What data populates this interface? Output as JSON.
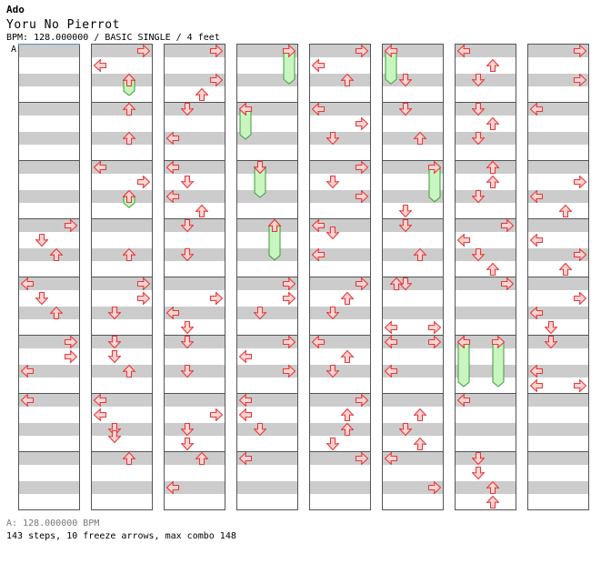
{
  "header": {
    "artist": "Ado",
    "title": "Yoru No Pierrot",
    "meta": "BPM: 128.000000 / BASIC SINGLE / 4 feet"
  },
  "bpm_marker": "A",
  "footer": {
    "bpm_line": "A: 128.000000 BPM",
    "summary": "143 steps, 10 freeze arrows, max combo 148"
  },
  "colors": {
    "band": "#cccccc",
    "arrow_fill": "#ffd4d4",
    "arrow_stroke": "#e23a3a",
    "freeze_fill": "#c8f5c0",
    "freeze_stroke": "#3e9a3e",
    "marker_line": "#8fc8ee"
  },
  "lanes": [
    "left",
    "down",
    "up",
    "right"
  ],
  "columns": [
    {
      "notes": [
        {
          "m": 3,
          "r": 0.5,
          "d": "right"
        },
        {
          "m": 3,
          "r": 1.5,
          "d": "down"
        },
        {
          "m": 3,
          "r": 2.5,
          "d": "up"
        },
        {
          "m": 4,
          "r": 0.5,
          "d": "left"
        },
        {
          "m": 4,
          "r": 1.5,
          "d": "down"
        },
        {
          "m": 4,
          "r": 2.5,
          "d": "up"
        },
        {
          "m": 5,
          "r": 0.5,
          "d": "right"
        },
        {
          "m": 5,
          "r": 1.5,
          "d": "right"
        },
        {
          "m": 5,
          "r": 2.5,
          "d": "left"
        },
        {
          "m": 6,
          "r": 0.5,
          "d": "left"
        }
      ],
      "freezes": []
    },
    {
      "notes": [
        {
          "m": 0,
          "r": 0.5,
          "d": "right"
        },
        {
          "m": 0,
          "r": 1.5,
          "d": "left"
        },
        {
          "m": 0,
          "r": 2.5,
          "d": "up"
        },
        {
          "m": 1,
          "r": 0.5,
          "d": "up"
        },
        {
          "m": 1,
          "r": 2.5,
          "d": "up"
        },
        {
          "m": 2,
          "r": 0.5,
          "d": "left"
        },
        {
          "m": 2,
          "r": 1.5,
          "d": "right"
        },
        {
          "m": 2,
          "r": 2.5,
          "d": "up"
        },
        {
          "m": 3,
          "r": 2.5,
          "d": "up"
        },
        {
          "m": 4,
          "r": 0.5,
          "d": "right"
        },
        {
          "m": 4,
          "r": 1.5,
          "d": "right"
        },
        {
          "m": 4,
          "r": 2.5,
          "d": "down"
        },
        {
          "m": 5,
          "r": 0.5,
          "d": "down"
        },
        {
          "m": 5,
          "r": 1.5,
          "d": "down"
        },
        {
          "m": 5,
          "r": 2.5,
          "d": "up"
        },
        {
          "m": 6,
          "r": 0.5,
          "d": "left"
        },
        {
          "m": 6,
          "r": 1.5,
          "d": "left"
        },
        {
          "m": 6,
          "r": 2.5,
          "d": "down"
        },
        {
          "m": 6,
          "r": 3.0,
          "d": "down"
        },
        {
          "m": 7,
          "r": 0.5,
          "d": "up"
        }
      ],
      "freezes": [
        {
          "m": 0,
          "r0": 2.5,
          "r1": 3.5,
          "d": "up"
        },
        {
          "m": 2,
          "r0": 2.5,
          "r1": 3.2,
          "d": "up"
        }
      ]
    },
    {
      "notes": [
        {
          "m": 0,
          "r": 0.5,
          "d": "right"
        },
        {
          "m": 0,
          "r": 2.5,
          "d": "right"
        },
        {
          "m": 0,
          "r": 3.5,
          "d": "up"
        },
        {
          "m": 1,
          "r": 0.5,
          "d": "down"
        },
        {
          "m": 1,
          "r": 2.5,
          "d": "left"
        },
        {
          "m": 2,
          "r": 0.5,
          "d": "left"
        },
        {
          "m": 2,
          "r": 1.5,
          "d": "down"
        },
        {
          "m": 2,
          "r": 2.5,
          "d": "left"
        },
        {
          "m": 2,
          "r": 3.5,
          "d": "up"
        },
        {
          "m": 3,
          "r": 0.5,
          "d": "down"
        },
        {
          "m": 3,
          "r": 2.5,
          "d": "down"
        },
        {
          "m": 4,
          "r": 1.5,
          "d": "right"
        },
        {
          "m": 4,
          "r": 2.5,
          "d": "left"
        },
        {
          "m": 4,
          "r": 3.5,
          "d": "down"
        },
        {
          "m": 5,
          "r": 0.5,
          "d": "down"
        },
        {
          "m": 5,
          "r": 2.5,
          "d": "down"
        },
        {
          "m": 6,
          "r": 1.5,
          "d": "right"
        },
        {
          "m": 6,
          "r": 2.5,
          "d": "down"
        },
        {
          "m": 6,
          "r": 3.5,
          "d": "down"
        },
        {
          "m": 7,
          "r": 0.5,
          "d": "up"
        },
        {
          "m": 7,
          "r": 2.5,
          "d": "left"
        }
      ],
      "freezes": []
    },
    {
      "notes": [
        {
          "m": 1,
          "r": 0.5,
          "d": "left"
        },
        {
          "m": 2,
          "r": 0.5,
          "d": "down"
        },
        {
          "m": 3,
          "r": 0.5,
          "d": "up"
        },
        {
          "m": 4,
          "r": 0.5,
          "d": "right"
        },
        {
          "m": 4,
          "r": 1.5,
          "d": "right"
        },
        {
          "m": 4,
          "r": 2.5,
          "d": "down"
        },
        {
          "m": 5,
          "r": 0.5,
          "d": "right"
        },
        {
          "m": 5,
          "r": 1.5,
          "d": "left"
        },
        {
          "m": 5,
          "r": 2.5,
          "d": "right"
        },
        {
          "m": 6,
          "r": 0.5,
          "d": "left"
        },
        {
          "m": 6,
          "r": 1.5,
          "d": "left"
        },
        {
          "m": 6,
          "r": 2.5,
          "d": "down"
        },
        {
          "m": 7,
          "r": 0.5,
          "d": "left"
        }
      ],
      "freezes": [
        {
          "m": 0,
          "r0": 0.5,
          "r1": 2.7,
          "d": "right"
        },
        {
          "m": 1,
          "r0": 0.5,
          "r1": 2.5,
          "d": "left"
        },
        {
          "m": 2,
          "r0": 0.5,
          "r1": 2.5,
          "d": "down"
        },
        {
          "m": 3,
          "r0": 0.5,
          "r1": 2.8,
          "d": "up"
        }
      ]
    },
    {
      "notes": [
        {
          "m": 0,
          "r": 0.5,
          "d": "right"
        },
        {
          "m": 0,
          "r": 1.5,
          "d": "left"
        },
        {
          "m": 0,
          "r": 2.5,
          "d": "up"
        },
        {
          "m": 1,
          "r": 0.5,
          "d": "left"
        },
        {
          "m": 1,
          "r": 1.5,
          "d": "right"
        },
        {
          "m": 1,
          "r": 2.5,
          "d": "down"
        },
        {
          "m": 2,
          "r": 0.5,
          "d": "right"
        },
        {
          "m": 2,
          "r": 1.5,
          "d": "down"
        },
        {
          "m": 2,
          "r": 2.5,
          "d": "right"
        },
        {
          "m": 3,
          "r": 0.5,
          "d": "left"
        },
        {
          "m": 3,
          "r": 1.0,
          "d": "down"
        },
        {
          "m": 3,
          "r": 2.5,
          "d": "left"
        },
        {
          "m": 4,
          "r": 0.5,
          "d": "right"
        },
        {
          "m": 4,
          "r": 1.5,
          "d": "up"
        },
        {
          "m": 4,
          "r": 2.5,
          "d": "down"
        },
        {
          "m": 5,
          "r": 0.5,
          "d": "left"
        },
        {
          "m": 5,
          "r": 1.5,
          "d": "up"
        },
        {
          "m": 5,
          "r": 2.5,
          "d": "down"
        },
        {
          "m": 6,
          "r": 0.5,
          "d": "right"
        },
        {
          "m": 6,
          "r": 1.5,
          "d": "up"
        },
        {
          "m": 6,
          "r": 2.5,
          "d": "up"
        },
        {
          "m": 6,
          "r": 3.5,
          "d": "down"
        },
        {
          "m": 7,
          "r": 0.5,
          "d": "right"
        }
      ],
      "freezes": []
    },
    {
      "notes": [
        {
          "m": 0,
          "r": 2.5,
          "d": "down"
        },
        {
          "m": 1,
          "r": 0.5,
          "d": "down"
        },
        {
          "m": 1,
          "r": 2.5,
          "d": "up"
        },
        {
          "m": 2,
          "r": 3.5,
          "d": "down"
        },
        {
          "m": 3,
          "r": 0.5,
          "d": "down"
        },
        {
          "m": 3,
          "r": 2.5,
          "d": "up"
        },
        {
          "m": 4,
          "r": 0.5,
          "d": "down"
        },
        {
          "m": 4,
          "r": 0.5,
          "d": "up",
          "o": 16
        },
        {
          "m": 4,
          "r": 3.5,
          "d": "left"
        },
        {
          "m": 4,
          "r": 3.5,
          "d": "right",
          "o": 58
        },
        {
          "m": 5,
          "r": 0.5,
          "d": "left"
        },
        {
          "m": 5,
          "r": 0.5,
          "d": "right",
          "o": 58
        },
        {
          "m": 5,
          "r": 2.5,
          "d": "left"
        },
        {
          "m": 6,
          "r": 1.5,
          "d": "up"
        },
        {
          "m": 6,
          "r": 2.5,
          "d": "down"
        },
        {
          "m": 6,
          "r": 3.5,
          "d": "up"
        },
        {
          "m": 7,
          "r": 0.5,
          "d": "left"
        },
        {
          "m": 7,
          "r": 2.5,
          "d": "right"
        }
      ],
      "freezes": [
        {
          "m": 0,
          "r0": 0.5,
          "r1": 2.7,
          "d": "left"
        },
        {
          "m": 2,
          "r0": 0.5,
          "r1": 2.8,
          "d": "right"
        }
      ]
    },
    {
      "notes": [
        {
          "m": 0,
          "r": 0.5,
          "d": "left"
        },
        {
          "m": 0,
          "r": 1.5,
          "d": "up"
        },
        {
          "m": 0,
          "r": 2.5,
          "d": "down"
        },
        {
          "m": 1,
          "r": 0.5,
          "d": "down"
        },
        {
          "m": 1,
          "r": 1.5,
          "d": "up"
        },
        {
          "m": 1,
          "r": 2.5,
          "d": "down"
        },
        {
          "m": 2,
          "r": 0.5,
          "d": "up"
        },
        {
          "m": 2,
          "r": 1.5,
          "d": "up"
        },
        {
          "m": 2,
          "r": 2.5,
          "d": "down"
        },
        {
          "m": 3,
          "r": 0.5,
          "d": "right"
        },
        {
          "m": 3,
          "r": 1.5,
          "d": "left"
        },
        {
          "m": 3,
          "r": 2.5,
          "d": "down"
        },
        {
          "m": 3,
          "r": 3.5,
          "d": "up"
        },
        {
          "m": 4,
          "r": 0.5,
          "d": "right"
        },
        {
          "m": 5,
          "r": 0.5,
          "d": "left"
        },
        {
          "m": 6,
          "r": 0.5,
          "d": "left"
        },
        {
          "m": 7,
          "r": 0.5,
          "d": "down"
        },
        {
          "m": 7,
          "r": 1.5,
          "d": "down"
        },
        {
          "m": 7,
          "r": 2.5,
          "d": "up"
        },
        {
          "m": 7,
          "r": 3.5,
          "d": "up"
        }
      ],
      "freezes": [
        {
          "m": 5,
          "r0": 0.5,
          "r1": 3.5,
          "d": "left"
        },
        {
          "m": 5,
          "r0": 0.5,
          "r1": 3.5,
          "d": "right",
          "o": 48
        }
      ]
    },
    {
      "notes": [
        {
          "m": 0,
          "r": 0.5,
          "d": "right"
        },
        {
          "m": 0,
          "r": 2.5,
          "d": "right"
        },
        {
          "m": 1,
          "r": 0.5,
          "d": "left"
        },
        {
          "m": 2,
          "r": 1.5,
          "d": "right"
        },
        {
          "m": 2,
          "r": 2.5,
          "d": "left"
        },
        {
          "m": 2,
          "r": 3.5,
          "d": "up"
        },
        {
          "m": 3,
          "r": 1.5,
          "d": "left"
        },
        {
          "m": 3,
          "r": 2.5,
          "d": "right"
        },
        {
          "m": 3,
          "r": 3.5,
          "d": "up"
        },
        {
          "m": 4,
          "r": 1.5,
          "d": "right"
        },
        {
          "m": 4,
          "r": 2.5,
          "d": "left"
        },
        {
          "m": 4,
          "r": 3.5,
          "d": "down"
        },
        {
          "m": 5,
          "r": 0.5,
          "d": "down"
        },
        {
          "m": 5,
          "r": 2.5,
          "d": "left"
        },
        {
          "m": 5,
          "r": 3.5,
          "d": "left"
        },
        {
          "m": 5,
          "r": 3.5,
          "d": "right",
          "o": 58
        }
      ],
      "freezes": []
    }
  ]
}
